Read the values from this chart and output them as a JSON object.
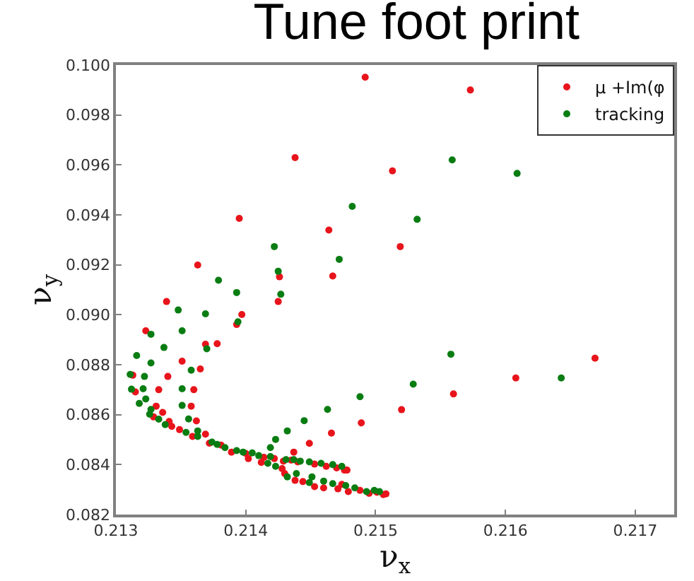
{
  "chart_data": {
    "type": "scatter",
    "title": "Tune foot print",
    "xlabel": "ν$_{x}$",
    "ylabel": "ν$_{y}$",
    "xlim": [
      0.213,
      0.2173
    ],
    "ylim": [
      0.082,
      0.1
    ],
    "xticks": [
      {
        "value": 0.213,
        "label": "0.213"
      },
      {
        "value": 0.214,
        "label": "0.214"
      },
      {
        "value": 0.215,
        "label": "0.215"
      },
      {
        "value": 0.216,
        "label": "0.216"
      },
      {
        "value": 0.217,
        "label": "0.217"
      }
    ],
    "yticks": [
      {
        "value": 0.082,
        "label": "0.082"
      },
      {
        "value": 0.084,
        "label": "0.084"
      },
      {
        "value": 0.086,
        "label": "0.086"
      },
      {
        "value": 0.088,
        "label": "0.088"
      },
      {
        "value": 0.09,
        "label": "0.090"
      },
      {
        "value": 0.092,
        "label": "0.092"
      },
      {
        "value": 0.094,
        "label": "0.094"
      },
      {
        "value": 0.096,
        "label": "0.096"
      },
      {
        "value": 0.098,
        "label": "0.098"
      },
      {
        "value": 0.1,
        "label": "0.100"
      }
    ],
    "legend": "top right",
    "marker": "circle",
    "series": [
      {
        "name": "μ +Im(φ",
        "color": "#e8141b",
        "x": [
          0.21492,
          0.21438,
          0.21513,
          0.21395,
          0.21464,
          0.21519,
          0.21363,
          0.21467,
          0.21426,
          0.21339,
          0.21425,
          0.21397,
          0.21393,
          0.21573,
          0.2152,
          0.2156,
          0.21608,
          0.21669,
          0.21323,
          0.21369,
          0.21378,
          0.21313,
          0.21351,
          0.21365,
          0.2134,
          0.21315,
          0.21333,
          0.2136,
          0.21331,
          0.21358,
          0.21336,
          0.21329,
          0.21362,
          0.21341,
          0.21343,
          0.21349,
          0.21359,
          0.21369,
          0.21372,
          0.21381,
          0.21389,
          0.214,
          0.21402,
          0.21414,
          0.21412,
          0.21422,
          0.21429,
          0.21428,
          0.21435,
          0.2143,
          0.2144,
          0.21438,
          0.21453,
          0.21444,
          0.21453,
          0.21462,
          0.2146,
          0.2147,
          0.21471,
          0.21476,
          0.21474,
          0.21478,
          0.21479,
          0.21488,
          0.21495,
          0.21501,
          0.21506,
          0.21508,
          0.21489,
          0.21466,
          0.21449,
          0.21437
        ],
        "values": [
          0.09951,
          0.09629,
          0.09576,
          0.09386,
          0.09339,
          0.09273,
          0.09199,
          0.09155,
          0.09152,
          0.09053,
          0.09053,
          0.09001,
          0.08961,
          0.099,
          0.0862,
          0.08683,
          0.08747,
          0.08826,
          0.08936,
          0.08882,
          0.08884,
          0.08758,
          0.08814,
          0.08783,
          0.08753,
          0.08691,
          0.087,
          0.087,
          0.08634,
          0.08634,
          0.08609,
          0.08591,
          0.08575,
          0.08573,
          0.08553,
          0.0854,
          0.08513,
          0.08522,
          0.08486,
          0.08478,
          0.0845,
          0.08445,
          0.08424,
          0.08429,
          0.08409,
          0.08424,
          0.08414,
          0.08384,
          0.08418,
          0.08364,
          0.08411,
          0.08337,
          0.08402,
          0.08332,
          0.08312,
          0.08393,
          0.08307,
          0.08387,
          0.08303,
          0.08378,
          0.08321,
          0.08378,
          0.08292,
          0.08297,
          0.08285,
          0.08289,
          0.0828,
          0.08283,
          0.08567,
          0.08526,
          0.08485,
          0.0845
        ]
      },
      {
        "name": "tracking",
        "color": "#0a7d12",
        "x": [
          0.21482,
          0.21422,
          0.21472,
          0.21425,
          0.21379,
          0.21427,
          0.21393,
          0.21348,
          0.21369,
          0.21394,
          0.21559,
          0.21609,
          0.21532,
          0.21558,
          0.21529,
          0.21643,
          0.21327,
          0.21351,
          0.21337,
          0.2137,
          0.21316,
          0.21327,
          0.21358,
          0.21311,
          0.21322,
          0.21312,
          0.21321,
          0.21351,
          0.21318,
          0.21323,
          0.21351,
          0.21327,
          0.21326,
          0.21333,
          0.21356,
          0.21338,
          0.21354,
          0.21363,
          0.21363,
          0.21374,
          0.21378,
          0.21384,
          0.21393,
          0.21398,
          0.21405,
          0.2141,
          0.21419,
          0.21417,
          0.21423,
          0.21431,
          0.21437,
          0.21432,
          0.21442,
          0.21439,
          0.21449,
          0.21451,
          0.21449,
          0.21458,
          0.2146,
          0.21467,
          0.21467,
          0.21474,
          0.21477,
          0.21484,
          0.21493,
          0.21499,
          0.21503,
          0.21488,
          0.21463,
          0.21445,
          0.21432,
          0.21423,
          0.21419
        ],
        "values": [
          0.09434,
          0.09273,
          0.09222,
          0.09174,
          0.09138,
          0.09082,
          0.09089,
          0.09019,
          0.09004,
          0.08972,
          0.0962,
          0.09566,
          0.09382,
          0.08842,
          0.08722,
          0.08747,
          0.08922,
          0.08936,
          0.08869,
          0.08864,
          0.08837,
          0.08807,
          0.08778,
          0.08761,
          0.08753,
          0.08702,
          0.08704,
          0.08704,
          0.08645,
          0.08663,
          0.08637,
          0.08621,
          0.08602,
          0.08582,
          0.08583,
          0.0856,
          0.08529,
          0.08535,
          0.08513,
          0.0849,
          0.08481,
          0.08468,
          0.08456,
          0.0845,
          0.08447,
          0.08436,
          0.08432,
          0.08405,
          0.08393,
          0.0842,
          0.0842,
          0.08351,
          0.08414,
          0.08364,
          0.08411,
          0.08351,
          0.08328,
          0.08405,
          0.08334,
          0.084,
          0.08324,
          0.08393,
          0.08316,
          0.08307,
          0.08292,
          0.08297,
          0.08292,
          0.08672,
          0.08621,
          0.08576,
          0.08535,
          0.08501,
          0.08468
        ]
      }
    ]
  }
}
